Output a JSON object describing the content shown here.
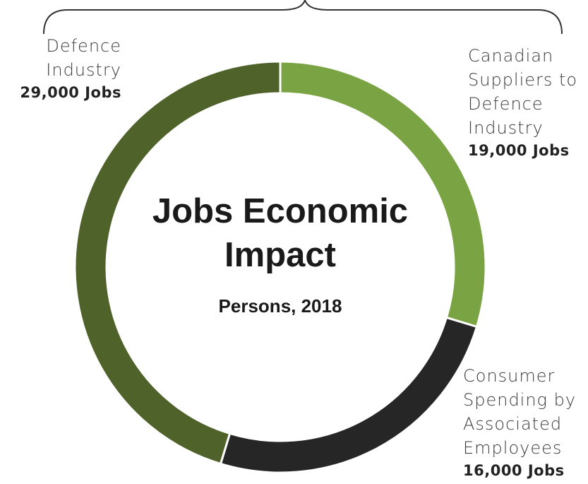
{
  "chart_data": {
    "type": "donut",
    "title": "Jobs Economic Impact",
    "subtitle": "Persons, 2018",
    "categories": [
      "Canadian Suppliers to Defence Industry",
      "Consumer Spending by Associated Employees",
      "Defence Industry"
    ],
    "values": [
      19000,
      16000,
      29000
    ],
    "value_labels": [
      "19,000 Jobs",
      "16,000 Jobs",
      "29,000 Jobs"
    ],
    "colors": [
      "#7aa444",
      "#262626",
      "#4f6229"
    ]
  }
}
